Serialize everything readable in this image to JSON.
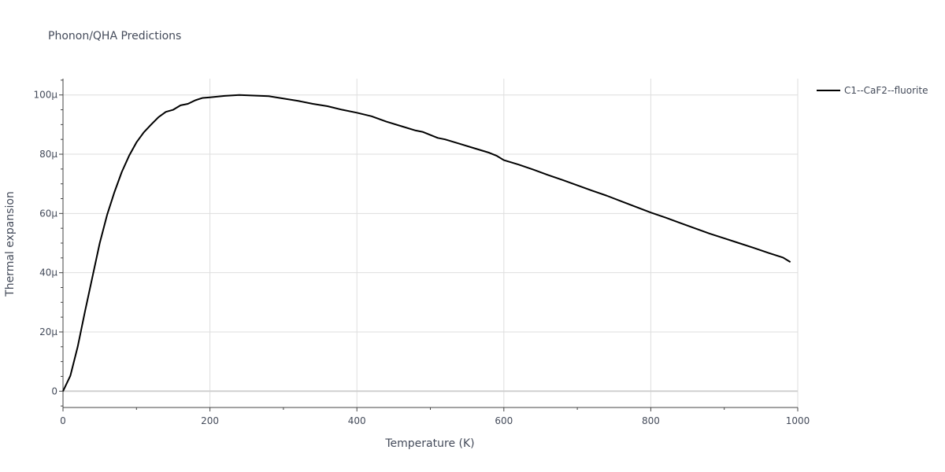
{
  "chart_data": {
    "type": "line",
    "title": "Phonon/QHA Predictions",
    "xlabel": "Temperature (K)",
    "ylabel": "Thermal expansion",
    "xlim": [
      0,
      1000
    ],
    "ylim": [
      -5.5e-06,
      0.0001055
    ],
    "x_ticks": [
      0,
      200,
      400,
      600,
      800,
      1000
    ],
    "x_tick_labels": [
      "0",
      "200",
      "400",
      "600",
      "800",
      "1000"
    ],
    "y_ticks": [
      0,
      2e-05,
      4e-05,
      6e-05,
      8e-05,
      0.0001
    ],
    "y_tick_labels": [
      "0",
      "20µ",
      "40µ",
      "60µ",
      "80µ",
      "100µ"
    ],
    "grid": true,
    "legend_position": "top-right",
    "line_color": "#000000",
    "series": [
      {
        "name": "C1--CaF2--fluorite",
        "x": [
          0,
          10,
          20,
          30,
          40,
          50,
          60,
          70,
          80,
          90,
          100,
          110,
          120,
          130,
          140,
          150,
          160,
          170,
          180,
          190,
          200,
          220,
          240,
          260,
          280,
          300,
          320,
          340,
          360,
          380,
          400,
          420,
          440,
          460,
          480,
          490,
          500,
          510,
          520,
          540,
          560,
          580,
          590,
          600,
          620,
          640,
          660,
          680,
          700,
          720,
          740,
          760,
          780,
          800,
          820,
          840,
          860,
          880,
          900,
          920,
          940,
          960,
          980,
          990
        ],
        "y": [
          0,
          5.2e-06,
          1.5e-05,
          2.7e-05,
          3.85e-05,
          5e-05,
          5.95e-05,
          6.72e-05,
          7.4e-05,
          7.95e-05,
          8.4e-05,
          8.74e-05,
          9e-05,
          9.25e-05,
          9.43e-05,
          9.5e-05,
          9.65e-05,
          9.7e-05,
          9.82e-05,
          9.9e-05,
          9.92e-05,
          9.97e-05,
          0.0001,
          9.98e-05,
          9.96e-05,
          9.88e-05,
          9.8e-05,
          9.7e-05,
          9.62e-05,
          9.5e-05,
          9.4e-05,
          9.28e-05,
          9.1e-05,
          8.95e-05,
          8.8e-05,
          8.75e-05,
          8.65e-05,
          8.55e-05,
          8.5e-05,
          8.35e-05,
          8.2e-05,
          8.05e-05,
          7.95e-05,
          7.8e-05,
          7.65e-05,
          7.48e-05,
          7.3e-05,
          7.13e-05,
          6.95e-05,
          6.77e-05,
          6.6e-05,
          6.41e-05,
          6.22e-05,
          6.03e-05,
          5.86e-05,
          5.68e-05,
          5.5e-05,
          5.32e-05,
          5.16e-05,
          5e-05,
          4.84e-05,
          4.67e-05,
          4.51e-05,
          4.36e-05
        ]
      }
    ]
  }
}
